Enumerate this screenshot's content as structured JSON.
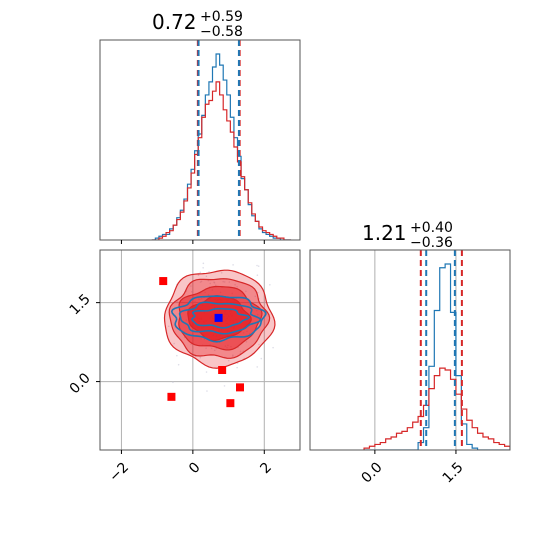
{
  "colors": {
    "blue": "#1f77b4",
    "red": "#d62728",
    "red_fill": "#e6191f",
    "marker_red": "#ff0000",
    "marker_blue": "#0000ff",
    "grid": "#b0b0b0"
  },
  "titles": {
    "param1": {
      "value": "0.72",
      "plus": "+0.59",
      "minus": "−0.58"
    },
    "param2": {
      "value": "1.21",
      "plus": "+0.40",
      "minus": "−0.36"
    }
  },
  "chart_data": [
    {
      "type": "histogram",
      "panel": "top-left marginal",
      "xlim": [
        -2.6,
        3.0
      ],
      "quantile_lines_red": [
        0.14,
        1.31
      ],
      "quantile_lines_blue": [
        0.16,
        1.29
      ],
      "bin_centers": [
        -1.1,
        -1.0,
        -0.9,
        -0.8,
        -0.7,
        -0.6,
        -0.5,
        -0.4,
        -0.3,
        -0.2,
        -0.1,
        0.0,
        0.1,
        0.2,
        0.3,
        0.4,
        0.5,
        0.6,
        0.7,
        0.8,
        0.9,
        1.0,
        1.1,
        1.2,
        1.3,
        1.4,
        1.5,
        1.6,
        1.7,
        1.8,
        1.9,
        2.0,
        2.1,
        2.2,
        2.3,
        2.4,
        2.5,
        2.6,
        2.7
      ],
      "series": [
        {
          "color": "blue",
          "values": [
            0.0,
            0.01,
            0.02,
            0.03,
            0.03,
            0.06,
            0.08,
            0.12,
            0.16,
            0.22,
            0.3,
            0.38,
            0.48,
            0.57,
            0.67,
            0.78,
            0.85,
            0.93,
            1.0,
            0.94,
            0.86,
            0.78,
            0.66,
            0.55,
            0.45,
            0.33,
            0.27,
            0.19,
            0.13,
            0.1,
            0.06,
            0.04,
            0.03,
            0.02,
            0.01,
            0.01,
            0.0,
            0.0,
            0.0
          ]
        },
        {
          "color": "red",
          "values": [
            0.0,
            0.0,
            0.01,
            0.02,
            0.04,
            0.05,
            0.08,
            0.11,
            0.15,
            0.21,
            0.28,
            0.36,
            0.46,
            0.55,
            0.66,
            0.73,
            0.75,
            0.8,
            0.85,
            0.78,
            0.7,
            0.64,
            0.58,
            0.5,
            0.42,
            0.34,
            0.27,
            0.2,
            0.14,
            0.1,
            0.07,
            0.05,
            0.04,
            0.03,
            0.02,
            0.01,
            0.01,
            0.0,
            0.0
          ]
        }
      ],
      "xticks": [
        -2,
        0,
        2
      ]
    },
    {
      "type": "scatter",
      "panel": "bottom-left joint",
      "xlim": [
        -2.6,
        3.0
      ],
      "ylim": [
        -1.3,
        2.5
      ],
      "xticks": [
        -2,
        0,
        2
      ],
      "xtick_labels": [
        "−2",
        "0",
        "2"
      ],
      "yticks": [
        0.0,
        1.5
      ],
      "ytick_labels": [
        "0.0",
        "1.5"
      ],
      "center_x": 0.72,
      "center_y": 1.21,
      "red_points": [
        {
          "x": -0.83,
          "y": 1.91
        },
        {
          "x": 0.82,
          "y": 0.22
        },
        {
          "x": 1.32,
          "y": -0.11
        },
        {
          "x": -0.6,
          "y": -0.29
        },
        {
          "x": 1.05,
          "y": -0.41
        }
      ],
      "blue_point": {
        "x": 0.72,
        "y": 1.21
      }
    },
    {
      "type": "histogram",
      "panel": "bottom-right marginal",
      "xlim": [
        -1.2,
        2.5
      ],
      "xticks": [
        0.0,
        1.5
      ],
      "xtick_labels": [
        "0.0",
        "1.5"
      ],
      "quantile_lines_red": [
        0.85,
        1.61
      ],
      "quantile_lines_blue": [
        0.95,
        1.48
      ],
      "bin_centers": [
        -0.15,
        -0.05,
        0.05,
        0.15,
        0.25,
        0.35,
        0.45,
        0.55,
        0.65,
        0.75,
        0.85,
        0.95,
        1.05,
        1.15,
        1.25,
        1.35,
        1.45,
        1.55,
        1.65,
        1.75,
        1.85,
        1.95,
        2.05,
        2.15,
        2.25,
        2.35,
        2.45
      ],
      "series": [
        {
          "color": "blue",
          "values": [
            0.0,
            0.0,
            0.0,
            0.0,
            0.0,
            0.0,
            0.0,
            0.0,
            0.0,
            0.0,
            0.04,
            0.12,
            0.45,
            0.75,
            0.98,
            1.0,
            0.74,
            0.4,
            0.14,
            0.03,
            0.01,
            0.0,
            0.0,
            0.0,
            0.0,
            0.0,
            0.0
          ]
        },
        {
          "color": "red",
          "values": [
            0.01,
            0.02,
            0.03,
            0.04,
            0.06,
            0.07,
            0.09,
            0.1,
            0.12,
            0.15,
            0.18,
            0.24,
            0.33,
            0.4,
            0.44,
            0.43,
            0.38,
            0.3,
            0.22,
            0.16,
            0.12,
            0.09,
            0.07,
            0.06,
            0.04,
            0.03,
            0.02
          ]
        }
      ]
    }
  ]
}
